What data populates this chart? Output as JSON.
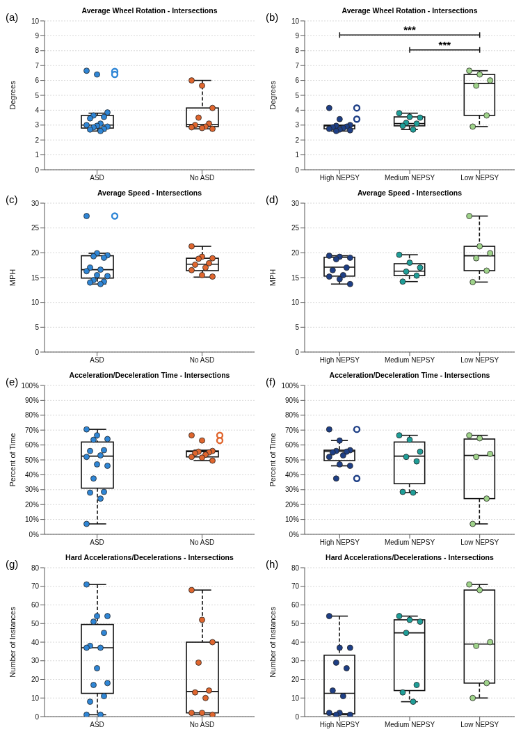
{
  "chart_data": [
    {
      "type": "box",
      "title": "Average Wheel Rotation - Intersections",
      "ylabel": "Degrees",
      "annotations": [
        "(a)"
      ],
      "categories": [
        "ASD",
        "No ASD"
      ],
      "ylim": [
        0,
        10
      ],
      "yticks": [
        0,
        1,
        2,
        3,
        4,
        5,
        6,
        7,
        8,
        9,
        10
      ],
      "grid": "y",
      "boxes": [
        {
          "low": 2.6,
          "q1": 2.8,
          "median": 3.0,
          "q3": 3.65,
          "high": 3.8,
          "outliers": [
            6.6,
            6.4
          ]
        },
        {
          "low": 2.75,
          "q1": 2.9,
          "median": 3.05,
          "q3": 4.15,
          "high": 6.0
        }
      ],
      "series": [
        {
          "type": "scatter",
          "color": "#2f86d6",
          "x": [
            "ASD",
            "ASD",
            "ASD",
            "ASD",
            "ASD",
            "ASD",
            "ASD",
            "ASD",
            "ASD",
            "ASD",
            "ASD",
            "ASD",
            "ASD",
            "ASD"
          ],
          "values": [
            6.65,
            6.4,
            3.85,
            3.65,
            3.55,
            3.45,
            3.1,
            3.0,
            2.95,
            2.9,
            2.85,
            2.75,
            2.7,
            2.6
          ]
        },
        {
          "type": "scatter",
          "color": "#e0662e",
          "x": [
            "No ASD",
            "No ASD",
            "No ASD",
            "No ASD",
            "No ASD",
            "No ASD",
            "No ASD",
            "No ASD",
            "No ASD",
            "No ASD"
          ],
          "values": [
            6.0,
            5.65,
            4.15,
            3.5,
            3.1,
            3.0,
            2.9,
            2.85,
            2.8,
            2.75
          ]
        }
      ]
    },
    {
      "type": "box",
      "title": "Average Wheel Rotation - Intersections",
      "ylabel": "Degrees",
      "annotations": [
        "(b)",
        "***",
        "***"
      ],
      "categories": [
        "High NEPSY",
        "Medium NEPSY",
        "Low NEPSY"
      ],
      "ylim": [
        0,
        10
      ],
      "yticks": [
        0,
        1,
        2,
        3,
        4,
        5,
        6,
        7,
        8,
        9,
        10
      ],
      "grid": "y",
      "boxes": [
        {
          "low": 2.6,
          "q1": 2.75,
          "median": 2.95,
          "q3": 3.0,
          "high": 3.0,
          "outliers": [
            4.15,
            3.4
          ]
        },
        {
          "low": 2.7,
          "q1": 2.95,
          "median": 3.1,
          "q3": 3.55,
          "high": 3.8
        },
        {
          "low": 2.9,
          "q1": 3.65,
          "median": 5.8,
          "q3": 6.4,
          "high": 6.65
        }
      ],
      "series": [
        {
          "type": "scatter",
          "color": "#1e3f86",
          "x": [
            "High NEPSY",
            "High NEPSY",
            "High NEPSY",
            "High NEPSY",
            "High NEPSY",
            "High NEPSY",
            "High NEPSY",
            "High NEPSY",
            "High NEPSY",
            "High NEPSY",
            "High NEPSY"
          ],
          "values": [
            4.15,
            3.4,
            3.0,
            2.95,
            2.9,
            2.85,
            2.8,
            2.75,
            2.7,
            2.65,
            2.6
          ]
        },
        {
          "type": "scatter",
          "color": "#1f9e98",
          "x": [
            "Medium NEPSY",
            "Medium NEPSY",
            "Medium NEPSY",
            "Medium NEPSY",
            "Medium NEPSY",
            "Medium NEPSY",
            "Medium NEPSY"
          ],
          "values": [
            3.8,
            3.55,
            3.5,
            3.15,
            3.1,
            2.95,
            2.7
          ]
        },
        {
          "type": "scatter",
          "color": "#9fd38a",
          "x": [
            "Low NEPSY",
            "Low NEPSY",
            "Low NEPSY",
            "Low NEPSY",
            "Low NEPSY",
            "Low NEPSY"
          ],
          "values": [
            6.65,
            6.4,
            6.0,
            5.65,
            3.65,
            2.9
          ]
        }
      ]
    },
    {
      "type": "box",
      "title": "Average Speed - Intersections",
      "ylabel": "MPH",
      "annotations": [
        "(c)"
      ],
      "categories": [
        "ASD",
        "No ASD"
      ],
      "ylim": [
        0,
        30
      ],
      "yticks": [
        0,
        5,
        10,
        15,
        20,
        25,
        30
      ],
      "grid": "y",
      "boxes": [
        {
          "low": 13.7,
          "q1": 14.9,
          "median": 16.6,
          "q3": 19.4,
          "high": 19.9,
          "outliers": [
            27.4
          ]
        },
        {
          "low": 15.1,
          "q1": 16.4,
          "median": 17.7,
          "q3": 18.9,
          "high": 21.3
        }
      ],
      "series": [
        {
          "type": "scatter",
          "color": "#2f86d6",
          "x": [
            "ASD",
            "ASD",
            "ASD",
            "ASD",
            "ASD",
            "ASD",
            "ASD",
            "ASD",
            "ASD",
            "ASD",
            "ASD",
            "ASD",
            "ASD",
            "ASD"
          ],
          "values": [
            27.4,
            19.9,
            19.5,
            19.3,
            19.0,
            17.0,
            16.6,
            16.3,
            15.5,
            15.3,
            14.5,
            14.2,
            14.0,
            13.7
          ]
        },
        {
          "type": "scatter",
          "color": "#e0662e",
          "x": [
            "No ASD",
            "No ASD",
            "No ASD",
            "No ASD",
            "No ASD",
            "No ASD",
            "No ASD",
            "No ASD",
            "No ASD",
            "No ASD"
          ],
          "values": [
            21.3,
            19.2,
            18.9,
            18.8,
            17.9,
            17.6,
            17.0,
            16.5,
            15.5,
            15.2
          ]
        }
      ]
    },
    {
      "type": "box",
      "title": "Average Speed - Intersections",
      "ylabel": "MPH",
      "annotations": [
        "(d)"
      ],
      "categories": [
        "High NEPSY",
        "Medium NEPSY",
        "Low NEPSY"
      ],
      "ylim": [
        0,
        30
      ],
      "yticks": [
        0,
        5,
        10,
        15,
        20,
        25,
        30
      ],
      "grid": "y",
      "boxes": [
        {
          "low": 13.7,
          "q1": 15.3,
          "median": 17.1,
          "q3": 19.1,
          "high": 19.4
        },
        {
          "low": 14.2,
          "q1": 15.4,
          "median": 16.3,
          "q3": 17.8,
          "high": 19.6
        },
        {
          "low": 14.1,
          "q1": 16.4,
          "median": 19.4,
          "q3": 21.3,
          "high": 27.4
        }
      ],
      "series": [
        {
          "type": "scatter",
          "color": "#1e3f86",
          "x": [
            "High NEPSY",
            "High NEPSY",
            "High NEPSY",
            "High NEPSY",
            "High NEPSY",
            "High NEPSY",
            "High NEPSY",
            "High NEPSY",
            "High NEPSY",
            "High NEPSY"
          ],
          "values": [
            19.4,
            19.2,
            19.0,
            18.7,
            17.0,
            16.5,
            15.5,
            15.2,
            14.7,
            13.7
          ]
        },
        {
          "type": "scatter",
          "color": "#1f9e98",
          "x": [
            "Medium NEPSY",
            "Medium NEPSY",
            "Medium NEPSY",
            "Medium NEPSY",
            "Medium NEPSY",
            "Medium NEPSY"
          ],
          "values": [
            19.6,
            18.0,
            17.0,
            16.2,
            15.4,
            14.2
          ]
        },
        {
          "type": "scatter",
          "color": "#9fd38a",
          "x": [
            "Low NEPSY",
            "Low NEPSY",
            "Low NEPSY",
            "Low NEPSY",
            "Low NEPSY",
            "Low NEPSY"
          ],
          "values": [
            27.4,
            21.3,
            19.9,
            18.9,
            16.4,
            14.1
          ]
        }
      ]
    },
    {
      "type": "box",
      "title": "Acceleration/Deceleration Time - Intersections",
      "ylabel": "Percent of Time",
      "annotations": [
        "(e)"
      ],
      "categories": [
        "ASD",
        "No ASD"
      ],
      "ylim": [
        0,
        100
      ],
      "yticks": [
        {
          "value": 0,
          "label": "0%"
        },
        {
          "value": 10,
          "label": "10%"
        },
        {
          "value": 20,
          "label": "20%"
        },
        {
          "value": 30,
          "label": "30%"
        },
        {
          "value": 40,
          "label": "40%"
        },
        {
          "value": 50,
          "label": "50%"
        },
        {
          "value": 60,
          "label": "60%"
        },
        {
          "value": 70,
          "label": "70%"
        },
        {
          "value": 80,
          "label": "80%"
        },
        {
          "value": 90,
          "label": "90%"
        },
        {
          "value": 100,
          "label": "100%"
        }
      ],
      "grid": "y",
      "boxes": [
        {
          "low": 7,
          "q1": 31,
          "median": 52.5,
          "q3": 62,
          "high": 70.5
        },
        {
          "low": 49.5,
          "q1": 52,
          "median": 55.5,
          "q3": 56,
          "high": 56.5,
          "outliers": [
            66.5,
            63
          ]
        }
      ],
      "series": [
        {
          "type": "scatter",
          "color": "#2f86d6",
          "x": [
            "ASD",
            "ASD",
            "ASD",
            "ASD",
            "ASD",
            "ASD",
            "ASD",
            "ASD",
            "ASD",
            "ASD",
            "ASD",
            "ASD",
            "ASD",
            "ASD",
            "ASD"
          ],
          "values": [
            70.5,
            66.5,
            64,
            63.5,
            56.5,
            56,
            53,
            52,
            47,
            46,
            37.5,
            28.5,
            28,
            24,
            7
          ]
        },
        {
          "type": "scatter",
          "color": "#e0662e",
          "x": [
            "No ASD",
            "No ASD",
            "No ASD",
            "No ASD",
            "No ASD",
            "No ASD",
            "No ASD",
            "No ASD",
            "No ASD",
            "No ASD"
          ],
          "values": [
            66.5,
            63,
            56,
            55.5,
            55,
            54.5,
            53.5,
            52,
            51.5,
            49.5
          ]
        }
      ]
    },
    {
      "type": "box",
      "title": "Acceleration/Deceleration Time - Intersections",
      "ylabel": "Percent of Time",
      "annotations": [
        "(f)"
      ],
      "categories": [
        "High NEPSY",
        "Medium NEPSY",
        "Low NEPSY"
      ],
      "ylim": [
        0,
        100
      ],
      "yticks": [
        {
          "value": 0,
          "label": "0%"
        },
        {
          "value": 10,
          "label": "10%"
        },
        {
          "value": 20,
          "label": "20%"
        },
        {
          "value": 30,
          "label": "30%"
        },
        {
          "value": 40,
          "label": "40%"
        },
        {
          "value": 50,
          "label": "50%"
        },
        {
          "value": 60,
          "label": "60%"
        },
        {
          "value": 70,
          "label": "70%"
        },
        {
          "value": 80,
          "label": "80%"
        },
        {
          "value": 90,
          "label": "90%"
        },
        {
          "value": 100,
          "label": "100%"
        }
      ],
      "grid": "y",
      "boxes": [
        {
          "low": 46,
          "q1": 49.5,
          "median": 55.5,
          "q3": 56.5,
          "high": 63,
          "outliers": [
            70.5,
            37.5
          ]
        },
        {
          "low": 28,
          "q1": 34,
          "median": 52.5,
          "q3": 62,
          "high": 66.5
        },
        {
          "low": 7,
          "q1": 24,
          "median": 53,
          "q3": 64,
          "high": 66.5
        }
      ],
      "series": [
        {
          "type": "scatter",
          "color": "#1e3f86",
          "x": [
            "High NEPSY",
            "High NEPSY",
            "High NEPSY",
            "High NEPSY",
            "High NEPSY",
            "High NEPSY",
            "High NEPSY",
            "High NEPSY",
            "High NEPSY",
            "High NEPSY",
            "High NEPSY"
          ],
          "values": [
            70.5,
            63,
            56.5,
            56,
            55.5,
            55,
            53,
            52,
            47,
            46,
            37.5
          ]
        },
        {
          "type": "scatter",
          "color": "#1f9e98",
          "x": [
            "Medium NEPSY",
            "Medium NEPSY",
            "Medium NEPSY",
            "Medium NEPSY",
            "Medium NEPSY",
            "Medium NEPSY",
            "Medium NEPSY"
          ],
          "values": [
            66.5,
            63.5,
            55.5,
            52,
            49,
            28.5,
            28
          ]
        },
        {
          "type": "scatter",
          "color": "#9fd38a",
          "x": [
            "Low NEPSY",
            "Low NEPSY",
            "Low NEPSY",
            "Low NEPSY",
            "Low NEPSY",
            "Low NEPSY"
          ],
          "values": [
            66.5,
            64.5,
            54,
            52,
            24,
            7
          ]
        }
      ]
    },
    {
      "type": "box",
      "title": "Hard Accelerations/Decelerations - Intersections",
      "ylabel": "Number of Instances",
      "annotations": [
        "(g)"
      ],
      "categories": [
        "ASD",
        "No ASD"
      ],
      "ylim": [
        0,
        80
      ],
      "yticks": [
        0,
        10,
        20,
        30,
        40,
        50,
        60,
        70,
        80
      ],
      "grid": "y",
      "boxes": [
        {
          "low": 1,
          "q1": 12.5,
          "median": 37,
          "q3": 49.5,
          "high": 71
        },
        {
          "low": 1,
          "q1": 2,
          "median": 13.5,
          "q3": 40,
          "high": 68
        }
      ],
      "series": [
        {
          "type": "scatter",
          "color": "#2f86d6",
          "x": [
            "ASD",
            "ASD",
            "ASD",
            "ASD",
            "ASD",
            "ASD",
            "ASD",
            "ASD",
            "ASD",
            "ASD",
            "ASD",
            "ASD",
            "ASD",
            "ASD",
            "ASD"
          ],
          "values": [
            71,
            54,
            54,
            51,
            45,
            38,
            37,
            37,
            26,
            18,
            17,
            11,
            8,
            1,
            1
          ]
        },
        {
          "type": "scatter",
          "color": "#e0662e",
          "x": [
            "No ASD",
            "No ASD",
            "No ASD",
            "No ASD",
            "No ASD",
            "No ASD",
            "No ASD",
            "No ASD",
            "No ASD",
            "No ASD"
          ],
          "values": [
            68,
            52,
            40,
            29,
            14,
            13,
            10,
            2,
            2,
            1
          ]
        }
      ]
    },
    {
      "type": "box",
      "title": "Hard Accelerations/Decelerations - Intersections",
      "ylabel": "Number of Instances",
      "annotations": [
        "(h)"
      ],
      "categories": [
        "High NEPSY",
        "Medium NEPSY",
        "Low NEPSY"
      ],
      "ylim": [
        0,
        80
      ],
      "yticks": [
        0,
        10,
        20,
        30,
        40,
        50,
        60,
        70,
        80
      ],
      "grid": "y",
      "boxes": [
        {
          "low": 1,
          "q1": 1.5,
          "median": 12.5,
          "q3": 33,
          "high": 54
        },
        {
          "low": 8,
          "q1": 14,
          "median": 45,
          "q3": 52,
          "high": 54
        },
        {
          "low": 10,
          "q1": 18,
          "median": 39,
          "q3": 68,
          "high": 71
        }
      ],
      "series": [
        {
          "type": "scatter",
          "color": "#1e3f86",
          "x": [
            "High NEPSY",
            "High NEPSY",
            "High NEPSY",
            "High NEPSY",
            "High NEPSY",
            "High NEPSY",
            "High NEPSY",
            "High NEPSY",
            "High NEPSY",
            "High NEPSY",
            "High NEPSY"
          ],
          "values": [
            54,
            37,
            37,
            29,
            26,
            14,
            11,
            2,
            2,
            1,
            1
          ]
        },
        {
          "type": "scatter",
          "color": "#1f9e98",
          "x": [
            "Medium NEPSY",
            "Medium NEPSY",
            "Medium NEPSY",
            "Medium NEPSY",
            "Medium NEPSY",
            "Medium NEPSY",
            "Medium NEPSY"
          ],
          "values": [
            54,
            52,
            51,
            45,
            17,
            13,
            8
          ]
        },
        {
          "type": "scatter",
          "color": "#9fd38a",
          "x": [
            "Low NEPSY",
            "Low NEPSY",
            "Low NEPSY",
            "Low NEPSY",
            "Low NEPSY",
            "Low NEPSY"
          ],
          "values": [
            71,
            68,
            40,
            38,
            18,
            10
          ]
        }
      ]
    }
  ]
}
